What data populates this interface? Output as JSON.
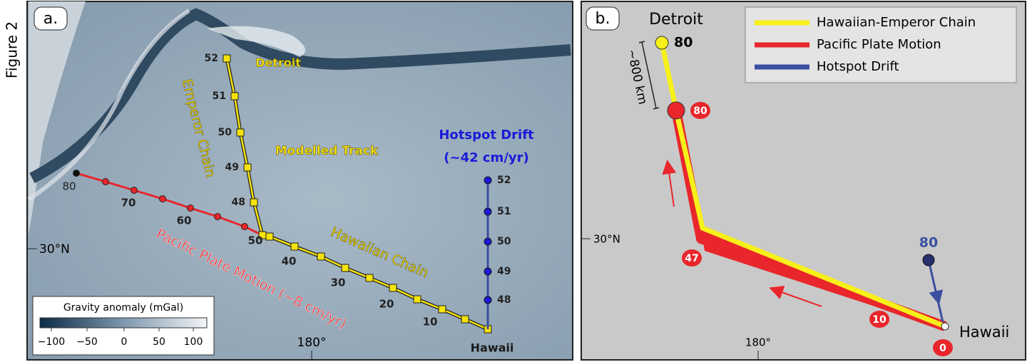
{
  "figure_label": "Figure 2",
  "panel_a": {
    "label": "a.",
    "detroit": "Detroit",
    "emperor_chain": "Emperor Chain",
    "modelled_track": "Modelled Track",
    "hawaiian_chain": "Hawaiian Chain",
    "plate_motion": "Pacific Plate Motion (~8 cm/yr)",
    "hotspot_drift": "Hotspot Drift",
    "hotspot_rate": "(~42 cm/yr)",
    "hawaii": "Hawaii",
    "latitude": "30°N",
    "longitude": "180°",
    "plate_ages": [
      "80",
      "70",
      "60",
      "50",
      "40",
      "30",
      "20",
      "10"
    ],
    "emperor_ages": [
      "52",
      "51",
      "50",
      "49",
      "48"
    ],
    "hotspot_ages": [
      "52",
      "51",
      "50",
      "49",
      "48"
    ],
    "colorbar": {
      "title": "Gravity anomaly (mGal)",
      "ticks": [
        "−100",
        "−50",
        "0",
        "50",
        "100"
      ]
    }
  },
  "panel_b": {
    "label": "b.",
    "legend": [
      "Hawaiian-Emperor Chain",
      "Pacific Plate Motion",
      "Hotspot Drift"
    ],
    "detroit": "Detroit",
    "detroit_age": "80",
    "distance": "~800 km",
    "plate_badges": [
      "80",
      "47",
      "10",
      "0"
    ],
    "hotspot_age": "80",
    "hawaii": "Hawaii",
    "latitude": "30°N",
    "longitude": "180°"
  }
}
